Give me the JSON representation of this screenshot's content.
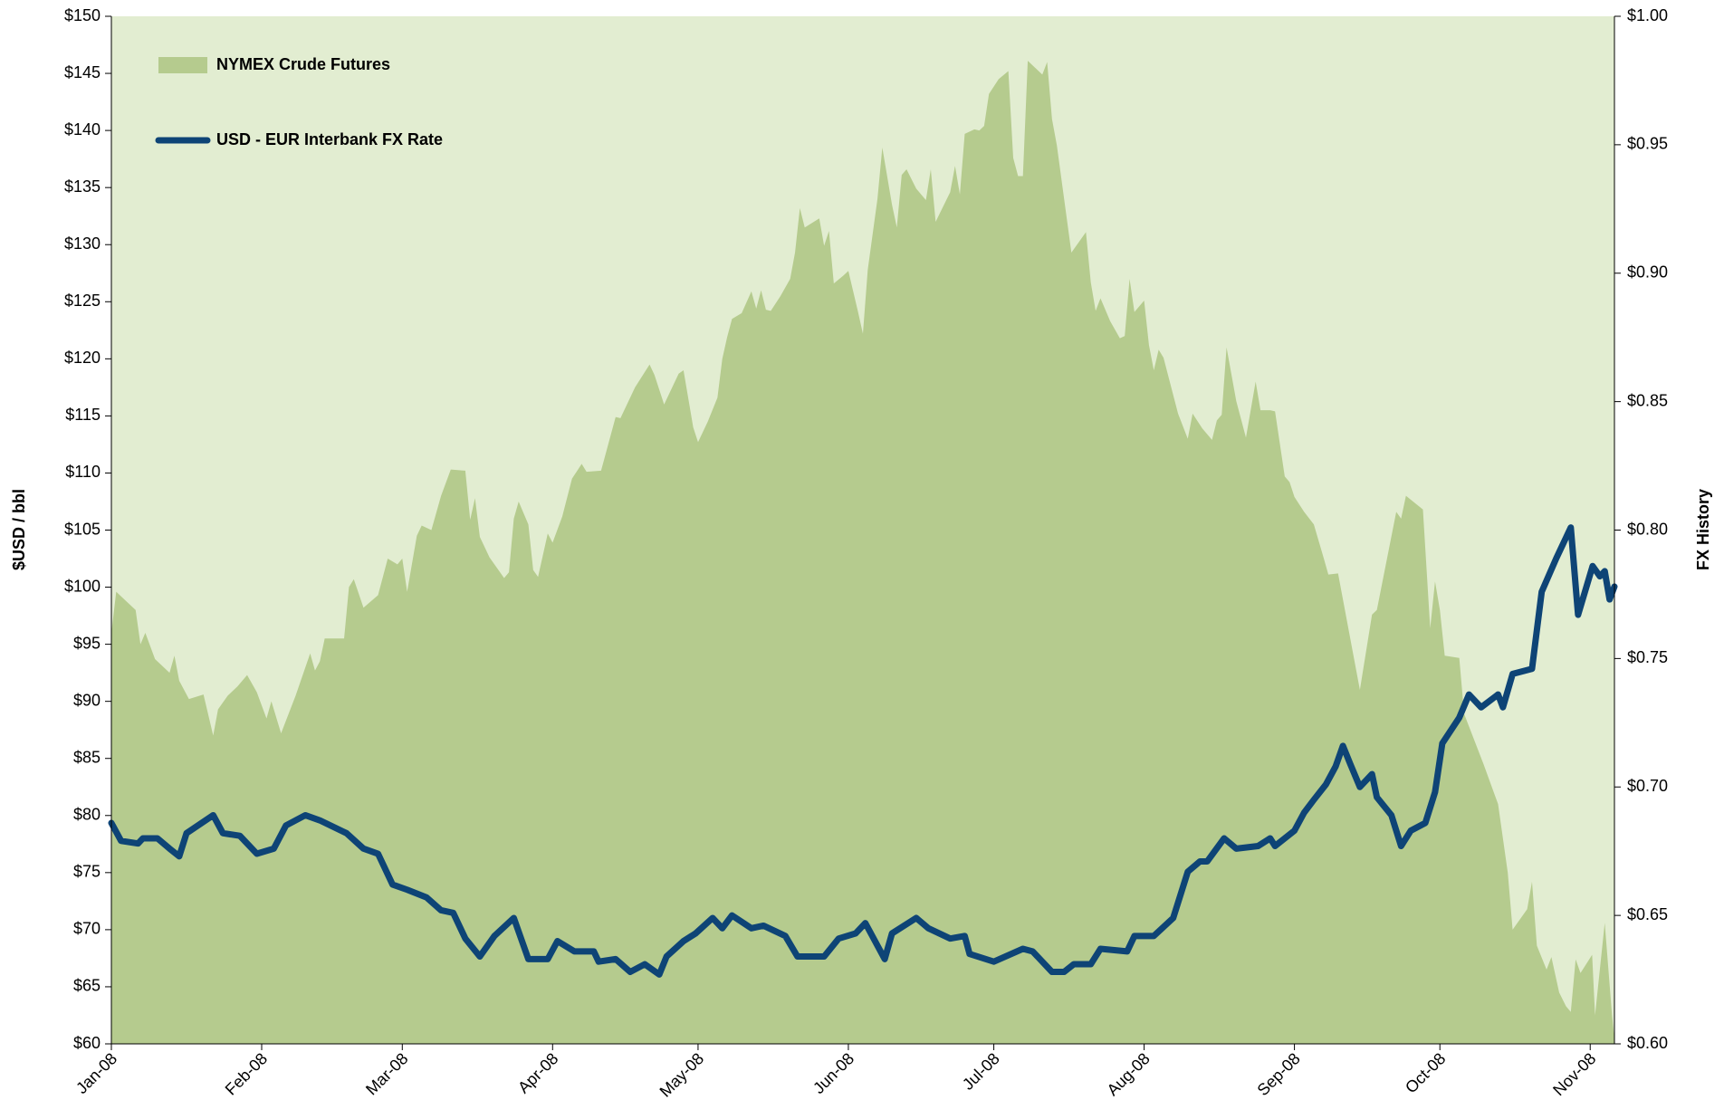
{
  "chart_data": {
    "type": "combo",
    "y_label": "$USD / bbl",
    "y2_label": "FX History",
    "xlim": [
      0,
      310
    ],
    "xticks": [
      {
        "value": 0,
        "label": "Jan-08"
      },
      {
        "value": 31,
        "label": "Feb-08"
      },
      {
        "value": 60,
        "label": "Mar-08"
      },
      {
        "value": 91,
        "label": "Apr-08"
      },
      {
        "value": 121,
        "label": "May-08"
      },
      {
        "value": 152,
        "label": "Jun-08"
      },
      {
        "value": 182,
        "label": "Jul-08"
      },
      {
        "value": 213,
        "label": "Aug-08"
      },
      {
        "value": 244,
        "label": "Sep-08"
      },
      {
        "value": 274,
        "label": "Oct-08"
      },
      {
        "value": 305,
        "label": "Nov-08"
      }
    ],
    "ylim": [
      60,
      150
    ],
    "yticks": [
      {
        "value": 60,
        "label": "$60"
      },
      {
        "value": 65,
        "label": "$65"
      },
      {
        "value": 70,
        "label": "$70"
      },
      {
        "value": 75,
        "label": "$75"
      },
      {
        "value": 80,
        "label": "$80"
      },
      {
        "value": 85,
        "label": "$85"
      },
      {
        "value": 90,
        "label": "$90"
      },
      {
        "value": 95,
        "label": "$95"
      },
      {
        "value": 100,
        "label": "$100"
      },
      {
        "value": 105,
        "label": "$105"
      },
      {
        "value": 110,
        "label": "$110"
      },
      {
        "value": 115,
        "label": "$115"
      },
      {
        "value": 120,
        "label": "$120"
      },
      {
        "value": 125,
        "label": "$125"
      },
      {
        "value": 130,
        "label": "$130"
      },
      {
        "value": 135,
        "label": "$135"
      },
      {
        "value": 140,
        "label": "$140"
      },
      {
        "value": 145,
        "label": "$145"
      },
      {
        "value": 150,
        "label": "$150"
      }
    ],
    "y2lim": [
      0.6,
      1.0
    ],
    "y2ticks": [
      {
        "value": 0.6,
        "label": "$0.60"
      },
      {
        "value": 0.65,
        "label": "$0.65"
      },
      {
        "value": 0.7,
        "label": "$0.70"
      },
      {
        "value": 0.75,
        "label": "$0.75"
      },
      {
        "value": 0.8,
        "label": "$0.80"
      },
      {
        "value": 0.85,
        "label": "$0.85"
      },
      {
        "value": 0.9,
        "label": "$0.90"
      },
      {
        "value": 0.95,
        "label": "$0.95"
      },
      {
        "value": 1.0,
        "label": "$1.00"
      }
    ],
    "background": "#e2edd1",
    "series": [
      {
        "name": "NYMEX Crude Futures",
        "type": "area",
        "color": "#b5cb8e",
        "x": [
          0,
          1,
          3,
          5,
          6,
          7,
          9,
          12,
          13,
          14,
          16,
          19,
          21,
          22,
          24,
          26,
          28,
          30,
          32,
          33,
          35,
          38,
          41,
          42,
          43,
          44,
          48,
          49,
          50,
          52,
          55,
          57,
          59,
          60,
          61,
          63,
          64,
          66,
          68,
          70,
          73,
          74,
          75,
          76,
          78,
          81,
          82,
          83,
          84,
          86,
          87,
          88,
          90,
          91,
          93,
          95,
          97,
          98,
          101,
          104,
          105,
          108,
          111,
          112,
          114,
          117,
          118,
          120,
          121,
          123,
          125,
          126,
          127,
          128,
          130,
          132,
          133,
          134,
          135,
          136,
          138,
          140,
          141,
          142,
          143,
          146,
          147,
          148,
          149,
          151,
          152,
          154,
          155,
          156,
          158,
          159,
          161,
          162,
          163,
          164,
          166,
          168,
          169,
          170,
          173,
          174,
          175,
          176,
          178,
          179,
          180,
          181,
          183,
          185,
          186,
          187,
          188,
          189,
          192,
          193,
          194,
          195,
          198,
          201,
          202,
          203,
          204,
          206,
          208,
          209,
          210,
          211,
          213,
          214,
          215,
          216,
          217,
          220,
          222,
          223,
          225,
          227,
          228,
          229,
          230,
          232,
          233,
          234,
          236,
          237,
          239,
          240,
          242,
          243,
          244,
          246,
          248,
          250,
          251,
          253,
          257.5,
          260,
          261,
          265,
          266,
          267,
          270.5,
          272,
          273,
          274,
          275,
          278,
          279,
          283,
          286,
          288,
          289,
          292,
          293,
          294,
          296,
          297,
          298.6,
          300,
          301,
          302,
          303,
          305.4,
          306,
          308,
          309.5,
          310
        ],
        "values": [
          96,
          99.6,
          98.8,
          98,
          95,
          96,
          93.7,
          92.5,
          94,
          91.8,
          90.2,
          90.6,
          87,
          89.3,
          90.5,
          91.3,
          92.3,
          90.8,
          88.5,
          90,
          87.2,
          90.5,
          94.2,
          92.7,
          93.5,
          95.5,
          95.5,
          100,
          100.7,
          98.2,
          99.3,
          102.5,
          102,
          102.5,
          99.6,
          104.5,
          105.4,
          105,
          108,
          110.3,
          110.2,
          105.9,
          107.8,
          104.4,
          102.6,
          100.8,
          101.3,
          106,
          107.5,
          105.5,
          101.5,
          100.9,
          104.7,
          103.9,
          106.2,
          109.5,
          110.8,
          110.1,
          110.2,
          114.9,
          114.8,
          117.5,
          119.5,
          118.6,
          116,
          118.7,
          119,
          114,
          112.7,
          114.5,
          116.6,
          120,
          121.9,
          123.5,
          124,
          125.9,
          124.4,
          126,
          124.3,
          124.2,
          125.5,
          127,
          129.3,
          133.2,
          131.5,
          132.3,
          129.9,
          131.2,
          126.6,
          127.3,
          127.7,
          124.1,
          122.2,
          127.8,
          134,
          138.5,
          133.5,
          131.5,
          136.1,
          136.6,
          134.9,
          133.9,
          136.6,
          132,
          134.6,
          136.9,
          134.4,
          139.7,
          140.1,
          140,
          140.4,
          143.2,
          144.5,
          145.2,
          137.6,
          136,
          136,
          146.1,
          144.9,
          146,
          141,
          138.7,
          129.3,
          131.1,
          126.7,
          124.2,
          125.3,
          123.3,
          121.8,
          122,
          127,
          124.1,
          125.1,
          121.2,
          119,
          120.8,
          120.1,
          115.2,
          113,
          115.2,
          113.9,
          112.9,
          114.6,
          115.1,
          121,
          116.3,
          114.7,
          113.1,
          118,
          115.5,
          115.5,
          115.4,
          109.7,
          109.2,
          107.9,
          106.6,
          105.5,
          102.6,
          101.1,
          101.2,
          91,
          97.6,
          98,
          106.6,
          106,
          108,
          106.8,
          96.4,
          100.5,
          98,
          94,
          93.8,
          88.9,
          84.5,
          81,
          75,
          70,
          71.8,
          74.2,
          68.6,
          66.5,
          67.6,
          64.5,
          63.3,
          62.8,
          67.4,
          66.2,
          67.8,
          62.5,
          70.6,
          62.5,
          60.5
        ]
      },
      {
        "name": "USD - EUR Interbank FX Rate",
        "type": "line",
        "axis": "y2",
        "color": "#0e4476",
        "x": [
          0,
          2,
          5.5,
          6.5,
          9.5,
          12,
          14,
          15.5,
          21,
          23,
          26.5,
          30,
          33.5,
          36,
          40,
          43,
          48.5,
          52,
          55,
          58,
          61,
          65,
          68,
          70.5,
          73,
          76,
          79,
          83,
          86,
          90,
          92,
          95.5,
          99.5,
          100.5,
          104,
          107,
          110,
          113,
          114.5,
          118,
          120.5,
          124,
          126,
          128,
          132,
          134.5,
          139,
          141.5,
          147,
          150,
          153.5,
          155.5,
          159.5,
          161,
          166,
          168.5,
          173,
          176,
          177,
          182,
          188,
          190,
          194,
          196.5,
          198.5,
          202,
          204,
          209.5,
          211,
          215,
          219,
          222,
          224.5,
          226,
          229.5,
          232,
          236.5,
          239,
          240,
          244,
          246,
          248,
          250.5,
          252.5,
          254,
          255.5,
          257.5,
          260,
          261,
          264,
          266,
          268,
          271,
          273,
          274.5,
          278,
          280,
          282.5,
          286,
          287,
          289,
          293,
          295,
          298,
          301,
          302.5,
          305.5,
          307,
          308,
          309,
          310
        ],
        "values": [
          0.686,
          0.679,
          0.678,
          0.68,
          0.68,
          0.676,
          0.673,
          0.682,
          0.689,
          0.682,
          0.681,
          0.674,
          0.676,
          0.685,
          0.689,
          0.687,
          0.682,
          0.676,
          0.674,
          0.662,
          0.66,
          0.657,
          0.652,
          0.651,
          0.641,
          0.634,
          0.642,
          0.649,
          0.633,
          0.633,
          0.64,
          0.636,
          0.636,
          0.632,
          0.633,
          0.628,
          0.631,
          0.627,
          0.634,
          0.64,
          0.643,
          0.649,
          0.645,
          0.65,
          0.645,
          0.646,
          0.642,
          0.634,
          0.634,
          0.641,
          0.643,
          0.647,
          0.633,
          0.643,
          0.649,
          0.645,
          0.641,
          0.642,
          0.635,
          0.632,
          0.637,
          0.636,
          0.628,
          0.628,
          0.631,
          0.631,
          0.637,
          0.636,
          0.642,
          0.642,
          0.649,
          0.667,
          0.671,
          0.671,
          0.68,
          0.676,
          0.677,
          0.68,
          0.677,
          0.683,
          0.69,
          0.695,
          0.701,
          0.708,
          0.716,
          0.709,
          0.7,
          0.705,
          0.696,
          0.689,
          0.677,
          0.683,
          0.686,
          0.698,
          0.717,
          0.727,
          0.736,
          0.731,
          0.736,
          0.731,
          0.744,
          0.746,
          0.776,
          0.789,
          0.801,
          0.767,
          0.786,
          0.782,
          0.784,
          0.773,
          0.778
        ]
      }
    ]
  }
}
